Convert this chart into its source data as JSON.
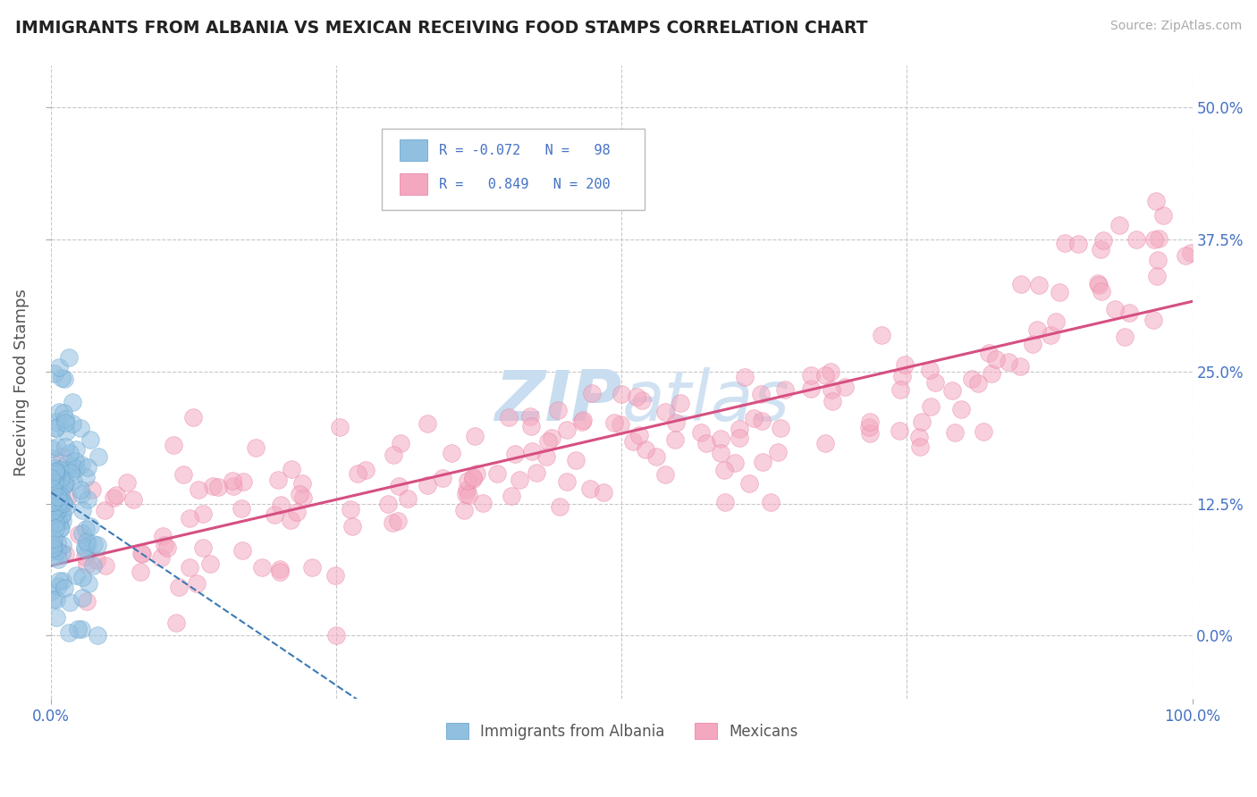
{
  "title": "IMMIGRANTS FROM ALBANIA VS MEXICAN RECEIVING FOOD STAMPS CORRELATION CHART",
  "source": "Source: ZipAtlas.com",
  "ylabel": "Receiving Food Stamps",
  "legend_labels": [
    "Immigrants from Albania",
    "Mexicans"
  ],
  "legend_R_alb": "-0.072",
  "legend_N_alb": "98",
  "legend_R_mex": "0.849",
  "legend_N_mex": "200",
  "blue_color": "#90bfe0",
  "pink_color": "#f4a8c0",
  "blue_edge_color": "#5b9ec9",
  "pink_edge_color": "#e8789a",
  "blue_line_color": "#3a7ab5",
  "pink_line_color": "#d64f82",
  "grid_color": "#c8c8c8",
  "watermark_zip": "ZIP",
  "watermark_atlas": "atlas",
  "watermark_color": "#c8ddf0",
  "title_color": "#222222",
  "tick_label_color": "#4472c4",
  "ylabel_color": "#555555",
  "source_color": "#aaaaaa",
  "legend_text_color": "#4472c4",
  "legend_border_color": "#bbbbbb",
  "background_color": "#ffffff",
  "xlim": [
    0.0,
    1.0
  ],
  "ylim": [
    -0.06,
    0.54
  ],
  "yticks": [
    0.0,
    0.125,
    0.25,
    0.375,
    0.5
  ],
  "ytick_labels": [
    "0.0%",
    "12.5%",
    "25.0%",
    "37.5%",
    "50.0%"
  ],
  "xtick_labels": [
    "0.0%",
    "100.0%"
  ]
}
